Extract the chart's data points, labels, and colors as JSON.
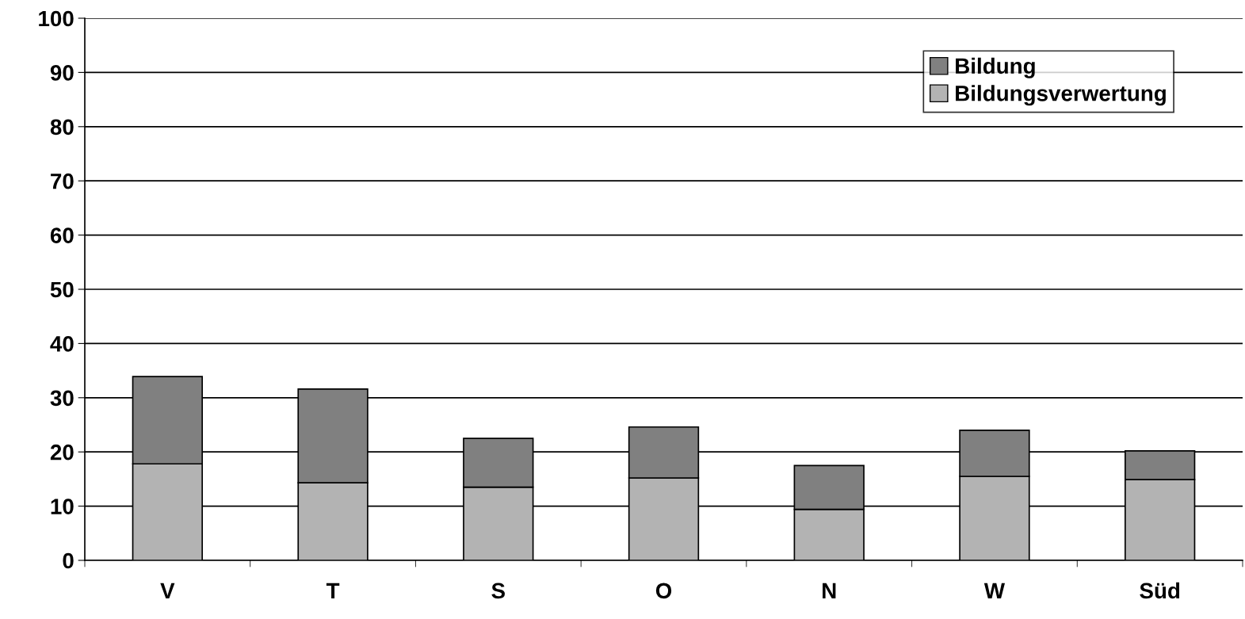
{
  "chart_data": {
    "type": "bar",
    "stacked": true,
    "categories": [
      "V",
      "T",
      "S",
      "O",
      "N",
      "W",
      "Süd"
    ],
    "series": [
      {
        "name": "Bildungsverwertung",
        "color": "#b3b3b3",
        "values": [
          17.8,
          14.3,
          13.5,
          15.2,
          9.4,
          15.5,
          14.9
        ]
      },
      {
        "name": "Bildung",
        "color": "#808080",
        "values": [
          16.1,
          17.3,
          9.0,
          9.4,
          8.1,
          8.5,
          5.3
        ]
      }
    ],
    "ylim": [
      0,
      100
    ],
    "yticks": [
      0,
      10,
      20,
      30,
      40,
      50,
      60,
      70,
      80,
      90,
      100
    ],
    "grid": "y",
    "legend": "top right"
  }
}
